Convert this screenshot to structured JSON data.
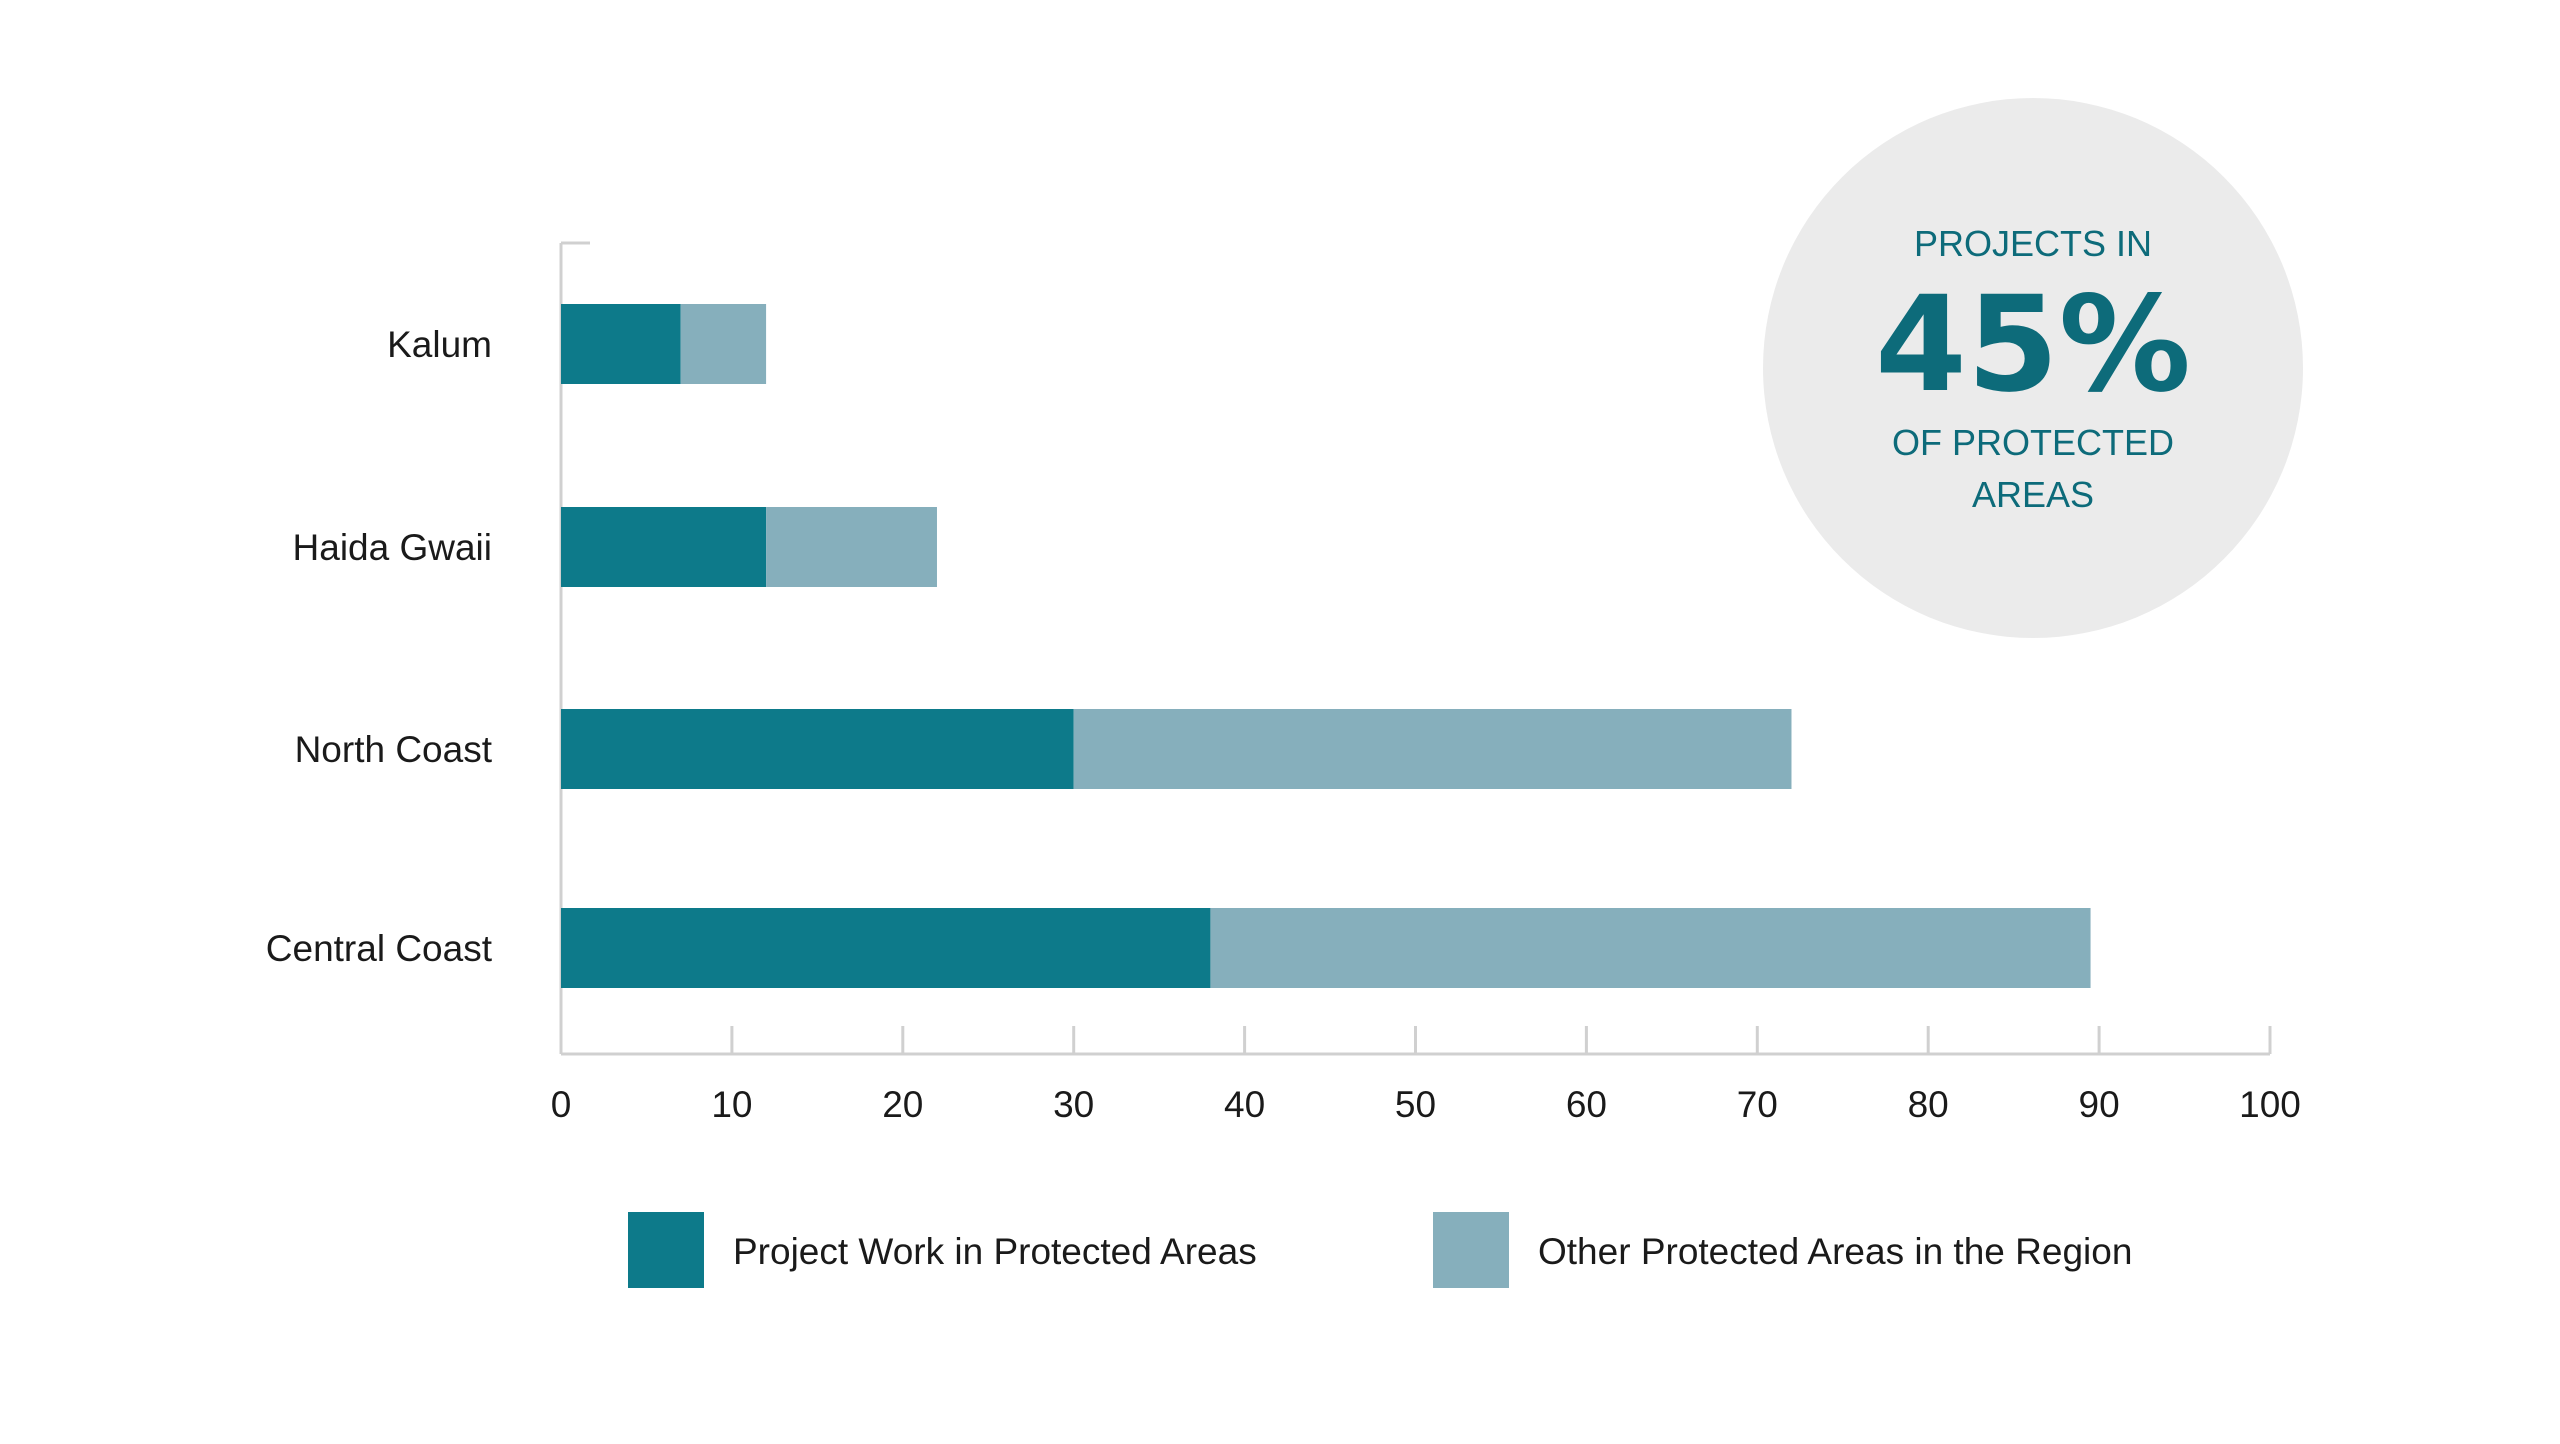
{
  "chart_data": {
    "type": "bar",
    "orientation": "horizontal",
    "stacked": true,
    "categories": [
      "Kalum",
      "Haida Gwaii",
      "North Coast",
      "Central Coast"
    ],
    "series": [
      {
        "name": "Project Work in Protected Areas",
        "color": "#0d7a8a",
        "values": [
          7,
          12,
          30,
          38
        ]
      },
      {
        "name": "Other Protected Areas in the Region",
        "color": "#86afbc",
        "values": [
          5,
          10,
          42,
          51.5
        ]
      }
    ],
    "xlim": [
      0,
      100
    ],
    "xticks": [
      "0",
      "10",
      "20",
      "30",
      "40",
      "50",
      "60",
      "70",
      "80",
      "90",
      "100"
    ],
    "grid": false,
    "legend_position": "bottom"
  },
  "callout": {
    "line1": "PROJECTS IN",
    "value": "45%",
    "line2": "OF PROTECTED",
    "line3": "AREAS",
    "text_color": "#0d6b7a",
    "background_color": "#ebebeb"
  },
  "colors": {
    "axis": "#d0d0d0",
    "label": "#1a1a1a"
  }
}
